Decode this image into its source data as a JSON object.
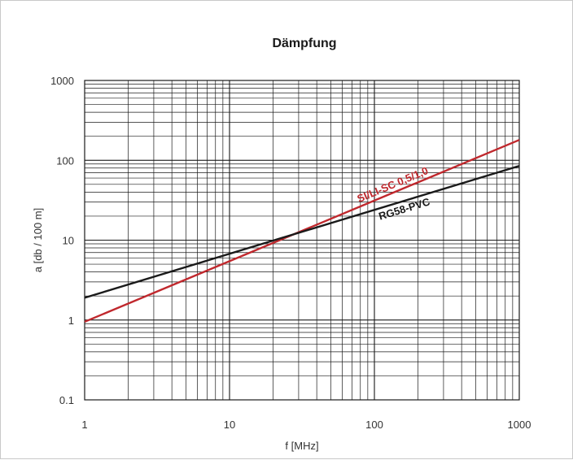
{
  "chart_data": {
    "type": "line",
    "title": "Dämpfung",
    "xlabel": "f [MHz]",
    "ylabel": "a  [db / 100 m]",
    "xscale": "log",
    "yscale": "log",
    "xlim": [
      1,
      1000
    ],
    "ylim": [
      0.1,
      1000
    ],
    "x_ticks": [
      "1",
      "10",
      "100",
      "1000"
    ],
    "y_ticks": [
      "0.1",
      "1",
      "10",
      "100",
      "1000"
    ],
    "grid": true,
    "series": [
      {
        "name": "SI/LI-SC 0,5/1,0",
        "color": "#c0282d",
        "x": [
          1,
          1000
        ],
        "y": [
          0.95,
          180
        ]
      },
      {
        "name": "RG58-PVC",
        "color": "#1a1a1a",
        "x": [
          1,
          1000
        ],
        "y": [
          1.9,
          85
        ]
      }
    ]
  }
}
